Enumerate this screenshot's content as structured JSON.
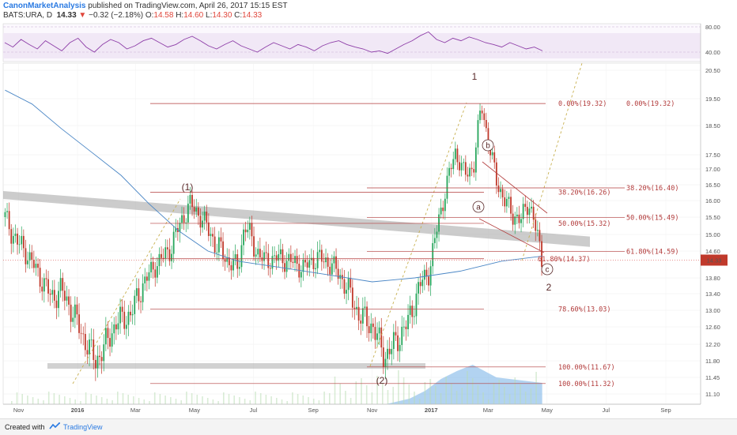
{
  "header": {
    "author": "CanonMarketAnalysis",
    "published": "published on TradingView.com, April 26, 2017 15:15 EST",
    "symbol": "BATS:URA, D",
    "last": "14.33",
    "change": "−0.32 (−2.18%)",
    "open_label": "O:",
    "open": "14.58",
    "high_label": "H:",
    "high": "14.60",
    "low_label": "L:",
    "low": "14.30",
    "close_label": "C:",
    "close": "14.33",
    "down_arrow": "▼"
  },
  "footer": {
    "created_with": "Created with",
    "brand": "TradingView"
  },
  "price_tag": "14.33",
  "chart_data": [
    {
      "type": "line",
      "indicator": "RSI",
      "y_ticks": [
        "80.00",
        "40.00"
      ],
      "values": [
        55,
        48,
        60,
        52,
        45,
        58,
        50,
        42,
        55,
        62,
        48,
        40,
        52,
        60,
        55,
        45,
        50,
        58,
        62,
        55,
        48,
        52,
        60,
        65,
        58,
        50,
        45,
        52,
        58,
        50,
        45,
        40,
        48,
        55,
        50,
        45,
        52,
        48,
        42,
        50,
        55,
        58,
        52,
        48,
        45,
        40,
        42,
        38,
        45,
        52,
        58,
        66,
        72,
        60,
        55,
        62,
        58,
        64,
        60,
        55,
        52,
        48,
        55,
        50,
        45,
        48,
        42
      ]
    },
    {
      "type": "candlestick",
      "x_ticks": [
        "Nov",
        "2016",
        "Mar",
        "May",
        "Jul",
        "Sep",
        "Nov",
        "2017",
        "Mar",
        "May",
        "Jul",
        "Sep"
      ],
      "y_ticks": [
        "20.50",
        "19.50",
        "18.50",
        "17.50",
        "17.00",
        "16.50",
        "16.00",
        "15.50",
        "15.00",
        "14.60",
        "13.80",
        "13.40",
        "13.00",
        "12.60",
        "12.20",
        "11.80",
        "11.45",
        "11.10"
      ],
      "price_path": [
        [
          "2015-10-18",
          15.5
        ],
        [
          "2015-10-28",
          14.9
        ],
        [
          "2015-11-10",
          14.5
        ],
        [
          "2015-11-22",
          13.9
        ],
        [
          "2015-12-05",
          13.3
        ],
        [
          "2015-12-15",
          13.5
        ],
        [
          "2015-12-28",
          12.9
        ],
        [
          "2016-01-08",
          12.3
        ],
        [
          "2016-01-20",
          11.8
        ],
        [
          "2016-01-28",
          12.1
        ],
        [
          "2016-02-10",
          12.7
        ],
        [
          "2016-02-25",
          12.9
        ],
        [
          "2016-03-08",
          13.6
        ],
        [
          "2016-03-22",
          14.2
        ],
        [
          "2016-04-05",
          14.6
        ],
        [
          "2016-04-18",
          15.4
        ],
        [
          "2016-04-26",
          15.9
        ],
        [
          "2016-05-08",
          15.5
        ],
        [
          "2016-05-22",
          14.8
        ],
        [
          "2016-06-05",
          14.3
        ],
        [
          "2016-06-15",
          14.1
        ],
        [
          "2016-06-22",
          15.3
        ],
        [
          "2016-07-02",
          14.7
        ],
        [
          "2016-07-12",
          14.3
        ],
        [
          "2016-07-25",
          14.4
        ],
        [
          "2016-08-08",
          14.3
        ],
        [
          "2016-08-22",
          14.1
        ],
        [
          "2016-09-05",
          14.4
        ],
        [
          "2016-09-20",
          14.2
        ],
        [
          "2016-10-05",
          13.6
        ],
        [
          "2016-10-18",
          12.9
        ],
        [
          "2016-11-02",
          12.6
        ],
        [
          "2016-11-14",
          11.9
        ],
        [
          "2016-11-24",
          12.2
        ],
        [
          "2016-12-08",
          12.7
        ],
        [
          "2016-12-20",
          13.6
        ],
        [
          "2016-12-30",
          14.0
        ],
        [
          "2017-01-08",
          15.3
        ],
        [
          "2017-01-18",
          16.6
        ],
        [
          "2017-01-26",
          17.6
        ],
        [
          "2017-02-05",
          16.8
        ],
        [
          "2017-02-14",
          17.1
        ],
        [
          "2017-02-22",
          19.3
        ],
        [
          "2017-03-02",
          17.8
        ],
        [
          "2017-03-10",
          16.6
        ],
        [
          "2017-03-18",
          16.0
        ],
        [
          "2017-03-26",
          15.6
        ],
        [
          "2017-04-04",
          15.4
        ],
        [
          "2017-04-12",
          16.0
        ],
        [
          "2017-04-18",
          15.3
        ],
        [
          "2017-04-26",
          14.33
        ]
      ],
      "moving_average": [
        [
          "2015-10-18",
          19.8
        ],
        [
          "2015-11-15",
          19.3
        ],
        [
          "2015-12-15",
          18.4
        ],
        [
          "2016-01-15",
          17.6
        ],
        [
          "2016-02-15",
          16.8
        ],
        [
          "2016-03-15",
          15.9
        ],
        [
          "2016-04-15",
          15.1
        ],
        [
          "2016-05-15",
          14.6
        ],
        [
          "2016-06-15",
          14.3
        ],
        [
          "2016-08-01",
          14.1
        ],
        [
          "2016-09-15",
          13.9
        ],
        [
          "2016-11-01",
          13.7
        ],
        [
          "2016-12-15",
          13.8
        ],
        [
          "2017-01-31",
          14.0
        ],
        [
          "2017-03-15",
          14.3
        ],
        [
          "2017-04-26",
          14.45
        ]
      ],
      "fib_levels": [
        {
          "label": "0.00%(19.32)",
          "value": 19.32
        },
        {
          "label": "0.00%(19.32)",
          "value": 19.32
        },
        {
          "label": "38.20%(16.26)",
          "value": 16.26
        },
        {
          "label": "38.20%(16.40)",
          "value": 16.4
        },
        {
          "label": "50.00%(15.32)",
          "value": 15.32
        },
        {
          "label": "50.00%(15.49)",
          "value": 15.49
        },
        {
          "label": "61.80%(14.59)",
          "value": 14.59
        },
        {
          "label": "61.80%(14.37)",
          "value": 14.37
        },
        {
          "label": "78.60%(13.03)",
          "value": 13.03
        },
        {
          "label": "100.00%(11.67)",
          "value": 11.67
        },
        {
          "label": "100.00%(11.32)",
          "value": 11.32
        }
      ],
      "wave_labels": [
        "1",
        "(1)",
        "(2)",
        "2",
        "a",
        "b",
        "c"
      ]
    }
  ]
}
